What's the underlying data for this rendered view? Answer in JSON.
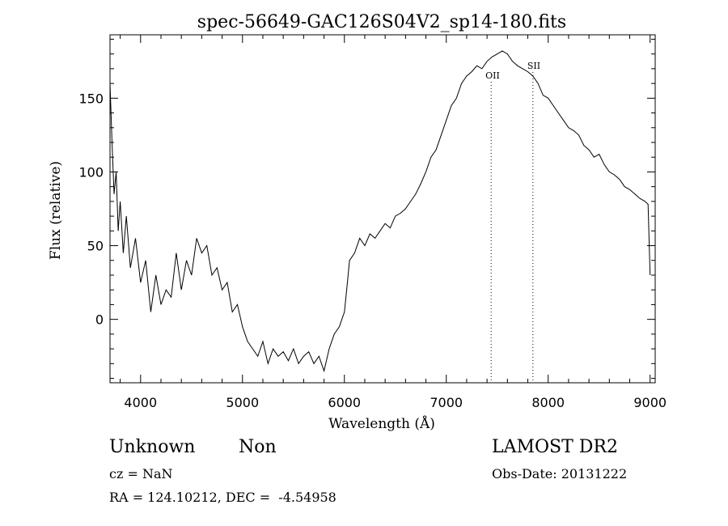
{
  "chart_data": {
    "type": "line",
    "title": "spec-56649-GAC126S04V2_sp14-180.fits",
    "xlabel": "Wavelength (Å)",
    "ylabel": "Flux (relative)",
    "xlim": [
      3700,
      9050
    ],
    "ylim": [
      -43,
      193
    ],
    "xticks": [
      4000,
      5000,
      6000,
      7000,
      8000,
      9000
    ],
    "yticks": [
      0,
      50,
      100,
      150
    ],
    "grid": false,
    "line_color": "#000000",
    "series": [
      {
        "x": [
          3700,
          3720,
          3740,
          3760,
          3780,
          3800,
          3830,
          3860,
          3900,
          3950,
          4000,
          4050,
          4100,
          4150,
          4200,
          4250,
          4300,
          4350,
          4400,
          4450,
          4500,
          4550,
          4600,
          4650,
          4700,
          4750,
          4800,
          4850,
          4900,
          4950,
          5000,
          5050,
          5100,
          5150,
          5200,
          5250,
          5300,
          5350,
          5400,
          5450,
          5500,
          5550,
          5600,
          5650,
          5700,
          5750,
          5800,
          5850,
          5900,
          5950,
          6000,
          6030,
          6050,
          6100,
          6150,
          6200,
          6250,
          6300,
          6350,
          6400,
          6450,
          6500,
          6550,
          6600,
          6650,
          6700,
          6750,
          6800,
          6850,
          6900,
          6950,
          7000,
          7050,
          7100,
          7150,
          7200,
          7250,
          7300,
          7350,
          7400,
          7450,
          7500,
          7550,
          7600,
          7650,
          7700,
          7750,
          7800,
          7850,
          7900,
          7950,
          8000,
          8050,
          8100,
          8150,
          8200,
          8250,
          8300,
          8350,
          8400,
          8450,
          8500,
          8550,
          8600,
          8650,
          8700,
          8750,
          8800,
          8850,
          8900,
          8950,
          8980,
          9000
        ],
        "y": [
          160,
          120,
          85,
          100,
          60,
          80,
          45,
          70,
          35,
          55,
          25,
          40,
          5,
          30,
          10,
          20,
          15,
          45,
          20,
          40,
          30,
          55,
          45,
          50,
          30,
          35,
          20,
          25,
          5,
          10,
          -5,
          -15,
          -20,
          -25,
          -15,
          -30,
          -20,
          -25,
          -22,
          -28,
          -20,
          -30,
          -25,
          -22,
          -30,
          -25,
          -35,
          -20,
          -10,
          -5,
          5,
          25,
          40,
          45,
          55,
          50,
          58,
          55,
          60,
          65,
          62,
          70,
          72,
          75,
          80,
          85,
          92,
          100,
          110,
          115,
          125,
          135,
          145,
          150,
          160,
          165,
          168,
          172,
          170,
          175,
          178,
          180,
          182,
          180,
          175,
          172,
          170,
          168,
          165,
          160,
          152,
          150,
          145,
          140,
          135,
          130,
          128,
          125,
          118,
          115,
          110,
          112,
          105,
          100,
          98,
          95,
          90,
          88,
          85,
          82,
          80,
          78,
          30
        ]
      }
    ],
    "annotations": [
      {
        "text": "OII",
        "x": 7440
      },
      {
        "text": "SII",
        "x": 7850
      }
    ]
  },
  "info": {
    "class": "Unknown",
    "subclass": "Non",
    "survey": "LAMOST DR2",
    "cz": "cz = NaN",
    "obs_date": "Obs-Date: 20131222",
    "radec": "RA = 124.10212, DEC =  -4.54958"
  }
}
